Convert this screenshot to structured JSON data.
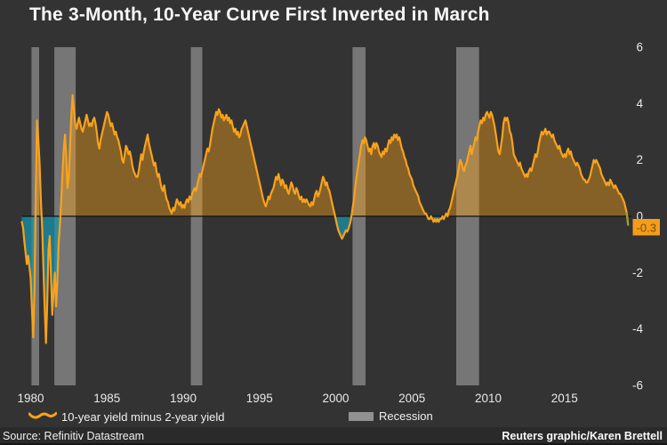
{
  "title": "The 3-Month, 10-Year Curve First Inverted in March",
  "footer": {
    "source": "Source: Refinitiv Datastream",
    "credit": "Reuters graphic/Karen Brettell"
  },
  "legend": {
    "series_label": "10-year yield minus 2-year yield",
    "recession_label": "Recession"
  },
  "annotation": {
    "last_value_label": "-0.3"
  },
  "colors": {
    "background": "#333333",
    "footer_bg": "#2a2a2a",
    "line": "#f9a21b",
    "area_positive": "rgba(249,162,27,0.42)",
    "area_negative": "rgba(26,148,170,0.75)",
    "recession_band": "rgba(212,212,212,0.42)",
    "zero_line": "#111111",
    "axis_text": "#e9e9e9",
    "label_box_bg": "#f59d18",
    "label_box_text": "#6e5212",
    "end_tick": "#98a03c",
    "legend_swatch": "#919191"
  },
  "chart_data": {
    "type": "area",
    "title": "The 3-Month, 10-Year Curve First Inverted in March",
    "xlabel": "",
    "ylabel": "",
    "ylim": [
      -6,
      6
    ],
    "y_ticks": [
      6,
      4,
      2,
      0,
      -2,
      -4,
      -6
    ],
    "x_ticks": [
      1980,
      1985,
      1990,
      1995,
      2000,
      2005,
      2010,
      2015
    ],
    "grid": false,
    "legend_position": "bottom",
    "series_name": "10-year yield minus 2-year yield",
    "last_value": -0.3,
    "recessions": [
      [
        1980.05,
        1980.55
      ],
      [
        1981.55,
        1982.95
      ],
      [
        1990.5,
        1991.25
      ],
      [
        2001.1,
        2001.95
      ],
      [
        2007.9,
        2009.4
      ]
    ],
    "x_start": 1979.4167,
    "x_step_years": 0.0833333,
    "values": [
      -0.2,
      -0.4,
      -0.9,
      -1.3,
      -1.7,
      -1.4,
      -1.8,
      -2.2,
      -3.3,
      -4.3,
      -2.6,
      0.8,
      3.4,
      2.7,
      1.9,
      0.6,
      -0.4,
      -1.8,
      -3.2,
      -4.5,
      -3.1,
      -1.2,
      -0.7,
      -2.2,
      -3.5,
      -2.7,
      -2.0,
      -3.2,
      -2.3,
      -1.0,
      -0.3,
      0.5,
      1.5,
      2.4,
      2.9,
      2.1,
      1.0,
      1.4,
      2.5,
      3.6,
      4.3,
      3.8,
      3.3,
      3.1,
      3.3,
      3.5,
      3.3,
      3.1,
      3.0,
      3.2,
      3.4,
      3.6,
      3.4,
      3.2,
      3.3,
      3.2,
      3.4,
      3.5,
      3.3,
      3.0,
      2.6,
      2.4,
      2.7,
      2.9,
      3.1,
      3.3,
      3.5,
      3.7,
      3.6,
      3.4,
      3.2,
      3.3,
      3.1,
      2.9,
      3.0,
      2.8,
      2.7,
      2.5,
      2.3,
      2.0,
      1.9,
      2.2,
      2.5,
      2.4,
      2.2,
      2.3,
      2.1,
      1.8,
      1.6,
      1.5,
      1.4,
      1.4,
      1.6,
      1.9,
      2.2,
      2.0,
      2.3,
      2.5,
      2.7,
      2.9,
      2.6,
      2.4,
      2.2,
      2.0,
      1.8,
      1.9,
      1.6,
      1.4,
      1.5,
      1.2,
      1.0,
      0.9,
      1.1,
      0.8,
      0.6,
      0.5,
      0.3,
      0.2,
      0.1,
      0.3,
      0.2,
      0.4,
      0.6,
      0.5,
      0.4,
      0.5,
      0.3,
      0.4,
      0.3,
      0.5,
      0.6,
      0.5,
      0.7,
      0.6,
      0.8,
      0.9,
      1.0,
      0.9,
      1.1,
      1.3,
      1.5,
      1.4,
      1.6,
      1.8,
      2.0,
      2.2,
      2.4,
      2.3,
      2.5,
      2.8,
      3.1,
      3.3,
      3.5,
      3.7,
      3.6,
      3.8,
      3.7,
      3.5,
      3.6,
      3.4,
      3.5,
      3.6,
      3.4,
      3.5,
      3.3,
      3.4,
      3.2,
      3.0,
      3.1,
      2.9,
      3.0,
      2.8,
      2.9,
      3.1,
      3.2,
      3.3,
      3.4,
      3.2,
      3.0,
      2.8,
      2.6,
      2.4,
      2.2,
      2.0,
      1.8,
      1.6,
      1.4,
      1.2,
      1.0,
      0.8,
      0.6,
      0.45,
      0.35,
      0.5,
      0.7,
      0.6,
      0.8,
      0.9,
      1.0,
      1.2,
      1.4,
      1.3,
      1.5,
      1.3,
      1.1,
      1.3,
      1.2,
      1.0,
      1.1,
      0.9,
      0.8,
      1.0,
      1.2,
      1.1,
      0.9,
      0.8,
      1.0,
      0.9,
      0.7,
      0.6,
      0.7,
      0.5,
      0.6,
      0.5,
      0.6,
      0.5,
      0.4,
      0.35,
      0.5,
      0.4,
      0.6,
      0.8,
      0.9,
      0.7,
      0.8,
      1.0,
      1.2,
      1.4,
      1.3,
      1.1,
      1.2,
      1.0,
      0.9,
      0.7,
      0.5,
      0.3,
      0.1,
      -0.1,
      -0.3,
      -0.5,
      -0.6,
      -0.7,
      -0.8,
      -0.7,
      -0.6,
      -0.5,
      -0.55,
      -0.45,
      -0.3,
      -0.1,
      0.2,
      0.5,
      0.9,
      1.3,
      1.6,
      1.9,
      2.2,
      2.5,
      2.7,
      2.6,
      2.8,
      2.7,
      2.5,
      2.3,
      2.4,
      2.2,
      2.5,
      2.6,
      2.4,
      2.6,
      2.5,
      2.3,
      2.2,
      2.1,
      2.3,
      2.2,
      2.4,
      2.3,
      2.5,
      2.7,
      2.6,
      2.8,
      2.7,
      2.9,
      2.8,
      2.9,
      2.7,
      2.8,
      2.6,
      2.4,
      2.3,
      2.1,
      2.0,
      1.8,
      1.7,
      1.5,
      1.4,
      1.3,
      1.1,
      1.0,
      0.9,
      0.8,
      0.7,
      0.5,
      0.4,
      0.3,
      0.2,
      0.1,
      0.1,
      0.0,
      -0.1,
      -0.1,
      0.0,
      -0.1,
      -0.2,
      -0.1,
      -0.2,
      -0.1,
      -0.2,
      -0.1,
      -0.1,
      0.0,
      -0.1,
      0.0,
      0.1,
      0.0,
      0.2,
      0.3,
      0.5,
      0.7,
      0.9,
      1.1,
      1.3,
      1.5,
      1.8,
      2.0,
      1.9,
      1.7,
      1.6,
      1.8,
      1.9,
      2.1,
      2.3,
      2.5,
      2.2,
      2.4,
      2.6,
      2.8,
      2.7,
      3.0,
      3.2,
      3.4,
      3.3,
      3.5,
      3.4,
      3.6,
      3.7,
      3.6,
      3.5,
      3.7,
      3.6,
      3.4,
      3.2,
      2.9,
      2.6,
      2.3,
      2.2,
      2.5,
      2.8,
      3.3,
      3.5,
      3.4,
      3.5,
      3.3,
      3.0,
      2.9,
      2.6,
      2.2,
      2.1,
      2.0,
      1.9,
      1.8,
      1.9,
      1.7,
      1.6,
      1.5,
      1.4,
      1.5,
      1.4,
      1.6,
      1.7,
      1.6,
      1.8,
      2.0,
      2.2,
      2.1,
      2.3,
      2.6,
      2.8,
      3.0,
      2.9,
      3.0,
      3.1,
      2.9,
      3.0,
      3.0,
      2.9,
      2.8,
      2.9,
      2.7,
      2.6,
      2.5,
      2.4,
      2.5,
      2.3,
      2.2,
      2.1,
      2.2,
      2.1,
      2.3,
      2.4,
      2.2,
      2.3,
      2.1,
      2.0,
      1.9,
      1.8,
      1.9,
      1.8,
      1.7,
      1.5,
      1.4,
      1.3,
      1.3,
      1.2,
      1.2,
      1.3,
      1.4,
      1.6,
      1.8,
      2.0,
      1.9,
      2.0,
      1.9,
      1.8,
      1.7,
      1.5,
      1.4,
      1.3,
      1.2,
      1.1,
      1.2,
      1.1,
      1.3,
      1.2,
      1.1,
      1.0,
      1.1,
      1.0,
      0.9,
      0.8,
      0.8,
      0.7,
      0.6,
      0.5,
      0.3,
      0.1,
      -0.3
    ]
  }
}
